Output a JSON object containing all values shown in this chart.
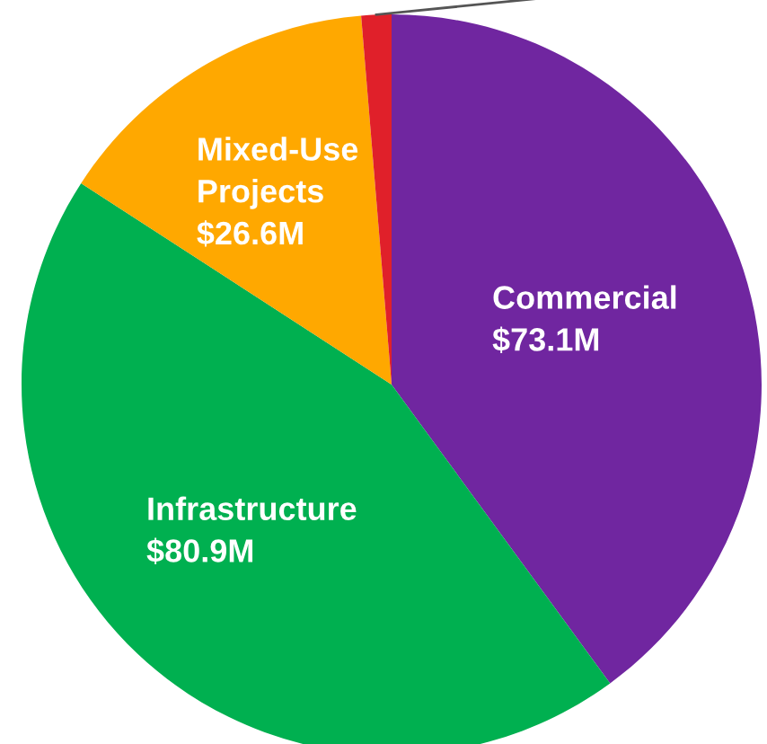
{
  "chart_data": {
    "type": "pie",
    "categories": [
      "Commercial",
      "Infrastructure",
      "Mixed-Use\nProjects",
      null
    ],
    "values": [
      73.1,
      80.9,
      26.6,
      2.4
    ],
    "value_labels": [
      "$73.1M",
      "$80.9M",
      "$26.6M",
      null
    ],
    "colors": [
      "#7026a0",
      "#00b050",
      "#ffa800",
      "#e0202a"
    ],
    "legend": false
  }
}
